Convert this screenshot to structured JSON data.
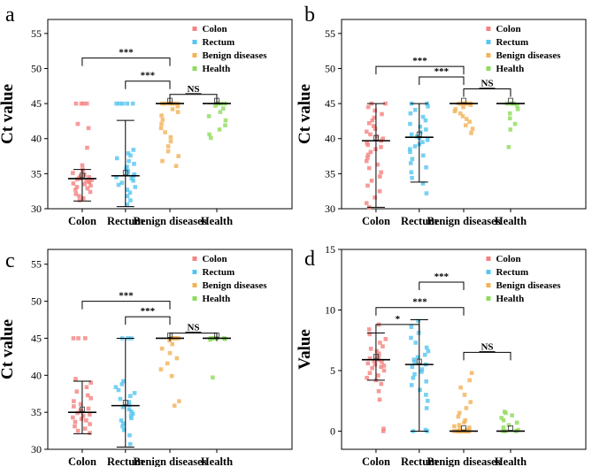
{
  "colors": {
    "colon": "#f4827f",
    "rectum": "#54c6f0",
    "benign": "#f2b255",
    "health": "#8edc5c",
    "axis": "#000000"
  },
  "chart_data": [
    {
      "panel": "a",
      "type": "scatter",
      "ylabel": "Ct value",
      "ylim": [
        30,
        57
      ],
      "yticks": [
        30,
        35,
        40,
        45,
        50,
        55
      ],
      "categories": [
        "Colon",
        "Rectum",
        "Benign diseases",
        "Health"
      ],
      "legend": [
        "Colon",
        "Rectum",
        "Benign diseases",
        "Health"
      ],
      "summary": [
        {
          "center": 34.3,
          "low": 31.1,
          "high": 35.6
        },
        {
          "center": 34.7,
          "low": 30.3,
          "high": 42.6
        },
        {
          "center": 45.0,
          "low": 45.0,
          "high": 45.0
        },
        {
          "center": 45.0,
          "low": 45.0,
          "high": 45.0
        }
      ],
      "series": [
        {
          "name": "Colon",
          "values": [
            45,
            45,
            45,
            45,
            42.1,
            41.5,
            38.7,
            36.2,
            35.6,
            35.4,
            35.1,
            34.9,
            34.8,
            34.6,
            34.5,
            34.4,
            34.3,
            34.2,
            34.1,
            34.0,
            33.9,
            33.8,
            33.6,
            33.5,
            33.3,
            33.1,
            32.9,
            32.7,
            32.4,
            32.1,
            31.8,
            31.5,
            31.2
          ]
        },
        {
          "name": "Rectum",
          "values": [
            45,
            45,
            45,
            45,
            45,
            38.4,
            37.9,
            37.6,
            37.2,
            36.8,
            36.4,
            36.0,
            35.7,
            35.4,
            35.1,
            34.9,
            34.7,
            34.5,
            34.3,
            34.0,
            33.7,
            33.4,
            33.1,
            32.7,
            32.3,
            31.8,
            31.2,
            30.6
          ]
        },
        {
          "name": "Benign diseases",
          "values": [
            45,
            45,
            45,
            45,
            45,
            45,
            44.6,
            44.2,
            43.8,
            43.3,
            42.7,
            42.1,
            41.5,
            40.9,
            40.2,
            39.6,
            38.9,
            38.2,
            37.5,
            36.8,
            36.1
          ]
        },
        {
          "name": "Health",
          "values": [
            45,
            45,
            45,
            45,
            44.7,
            44.3,
            43.8,
            43.2,
            42.6,
            41.9,
            41.3,
            40.6,
            40.1
          ]
        }
      ],
      "brackets": [
        {
          "from": 0,
          "to": 2,
          "y": 51.5,
          "label": "***"
        },
        {
          "from": 1,
          "to": 2,
          "y": 48.2,
          "label": "***"
        },
        {
          "from": 2,
          "to": 3,
          "y": 46.3,
          "label": "NS"
        }
      ]
    },
    {
      "panel": "b",
      "type": "scatter",
      "ylabel": "Ct value",
      "ylim": [
        30,
        57
      ],
      "yticks": [
        30,
        35,
        40,
        45,
        50,
        55
      ],
      "categories": [
        "Colon",
        "Rectum",
        "Benign diseases",
        "Health"
      ],
      "legend": [
        "Colon",
        "Rectum",
        "Benign diseases",
        "Health"
      ],
      "summary": [
        {
          "center": 39.7,
          "low": 30.2,
          "high": 45.0
        },
        {
          "center": 40.2,
          "low": 33.8,
          "high": 45.0
        },
        {
          "center": 45.0,
          "low": 45.0,
          "high": 45.0
        },
        {
          "center": 45.0,
          "low": 45.0,
          "high": 45.0
        }
      ],
      "series": [
        {
          "name": "Colon",
          "values": [
            45,
            45,
            44.5,
            44.0,
            43.5,
            43.0,
            42.6,
            42.2,
            41.8,
            41.4,
            41.0,
            40.6,
            40.3,
            40.0,
            39.7,
            39.4,
            39.1,
            38.8,
            38.5,
            38.1,
            37.7,
            37.3,
            36.8,
            36.3,
            35.8,
            35.2,
            34.6,
            34.0,
            33.3,
            32.5,
            31.6,
            30.8,
            30.2
          ]
        },
        {
          "name": "Rectum",
          "values": [
            45,
            45,
            44.6,
            44.1,
            43.6,
            43.1,
            42.6,
            42.1,
            41.7,
            41.3,
            40.9,
            40.6,
            40.3,
            40.1,
            39.8,
            39.5,
            39.2,
            38.9,
            38.5,
            38.1,
            37.6,
            37.1,
            36.5,
            35.9,
            35.2,
            34.4,
            33.6,
            32.2
          ]
        },
        {
          "name": "Benign diseases",
          "values": [
            45,
            45,
            45,
            45,
            45,
            45,
            44.8,
            44.5,
            44.2,
            43.9,
            43.6,
            43.2,
            42.8,
            42.4,
            41.9,
            41.4,
            40.8
          ]
        },
        {
          "name": "Health",
          "values": [
            45,
            45,
            45,
            45,
            44.7,
            44.2,
            43.6,
            42.9,
            42.1,
            41.3,
            38.8
          ]
        }
      ],
      "brackets": [
        {
          "from": 0,
          "to": 2,
          "y": 50.3,
          "label": "***"
        },
        {
          "from": 1,
          "to": 2,
          "y": 48.8,
          "label": "***"
        },
        {
          "from": 2,
          "to": 3,
          "y": 47.1,
          "label": "NS"
        }
      ]
    },
    {
      "panel": "c",
      "type": "scatter",
      "ylabel": "Ct value",
      "ylim": [
        30,
        57
      ],
      "yticks": [
        30,
        35,
        40,
        45,
        50,
        55
      ],
      "categories": [
        "Colon",
        "Rectum",
        "Benign diseases",
        "Health"
      ],
      "legend": [
        "Colon",
        "Rectum",
        "Benign diseases",
        "Health"
      ],
      "summary": [
        {
          "center": 35.0,
          "low": 32.1,
          "high": 39.2
        },
        {
          "center": 35.9,
          "low": 30.3,
          "high": 45.0
        },
        {
          "center": 45.0,
          "low": 45.0,
          "high": 45.0
        },
        {
          "center": 45.0,
          "low": 45.0,
          "high": 45.0
        }
      ],
      "series": [
        {
          "name": "Colon",
          "values": [
            45,
            45,
            45,
            39.5,
            39.0,
            38.4,
            37.8,
            37.3,
            36.9,
            36.5,
            36.1,
            35.8,
            35.5,
            35.3,
            35.1,
            34.9,
            34.7,
            34.5,
            34.3,
            34.1,
            33.9,
            33.7,
            33.4,
            33.1,
            32.8,
            32.5,
            32.2
          ]
        },
        {
          "name": "Rectum",
          "values": [
            45,
            45,
            45,
            39.2,
            38.8,
            38.4,
            38.0,
            37.6,
            37.2,
            36.8,
            36.4,
            36.0,
            35.7,
            35.4,
            35.1,
            34.8,
            34.5,
            34.2,
            33.9,
            33.5,
            33.1,
            32.6,
            31.9,
            30.7
          ]
        },
        {
          "name": "Benign diseases",
          "values": [
            45,
            45,
            45,
            45,
            45,
            44.7,
            44.2,
            43.6,
            43.0,
            42.3,
            41.6,
            40.8,
            39.9,
            36.5,
            35.9
          ]
        },
        {
          "name": "Health",
          "values": [
            45,
            45,
            45,
            45,
            45,
            44.9,
            44.8,
            39.7
          ]
        }
      ],
      "brackets": [
        {
          "from": 0,
          "to": 2,
          "y": 50.0,
          "label": "***"
        },
        {
          "from": 1,
          "to": 2,
          "y": 47.9,
          "label": "***"
        },
        {
          "from": 2,
          "to": 3,
          "y": 45.7,
          "label": "NS"
        }
      ]
    },
    {
      "panel": "d",
      "type": "scatter",
      "ylabel": "Value",
      "ylim": [
        -1.5,
        15
      ],
      "yticks": [
        0,
        5,
        10,
        15
      ],
      "categories": [
        "Colon",
        "Rectum",
        "Benign diseases",
        "Health"
      ],
      "legend": [
        "Colon",
        "Rectum",
        "Benign diseases",
        "Health"
      ],
      "summary": [
        {
          "center": 5.9,
          "low": 4.2,
          "high": 8.1
        },
        {
          "center": 5.5,
          "low": 0.0,
          "high": 9.2
        },
        {
          "center": 0.0,
          "low": 0.0,
          "high": 0.0
        },
        {
          "center": 0.0,
          "low": 0.0,
          "high": 0.0
        }
      ],
      "series": [
        {
          "name": "Colon",
          "values": [
            8.8,
            8.4,
            8.0,
            7.6,
            7.3,
            7.0,
            6.8,
            6.6,
            6.4,
            6.2,
            6.1,
            6.0,
            5.9,
            5.8,
            5.7,
            5.6,
            5.5,
            5.4,
            5.3,
            5.2,
            5.0,
            4.8,
            4.6,
            4.4,
            4.2,
            3.9,
            3.3,
            2.6,
            0.2,
            0.0
          ]
        },
        {
          "name": "Rectum",
          "values": [
            9.1,
            8.6,
            8.1,
            7.7,
            7.3,
            6.9,
            6.6,
            6.3,
            6.1,
            5.9,
            5.7,
            5.5,
            5.3,
            5.1,
            4.9,
            4.7,
            4.4,
            4.1,
            3.8,
            3.4,
            3.0,
            2.5,
            1.9,
            0.1,
            0.0,
            0.0
          ]
        },
        {
          "name": "Benign diseases",
          "values": [
            4.8,
            4.2,
            3.6,
            3.0,
            2.4,
            1.9,
            1.5,
            1.2,
            0.9,
            0.7,
            0.5,
            0.4,
            0.3,
            0.2,
            0.1,
            0.0,
            0.0,
            0.0,
            0.0,
            0.0,
            0.0,
            0.0,
            0.0,
            0.0,
            0.0,
            0.0,
            0.0,
            0.0
          ]
        },
        {
          "name": "Health",
          "values": [
            1.6,
            1.5,
            1.3,
            1.1,
            0.9,
            0.7,
            0.5,
            0.3,
            0.1,
            0.0,
            0.0,
            0.0
          ]
        }
      ],
      "brackets": [
        {
          "from": 1,
          "to": 2,
          "y": 12.3,
          "label": "***"
        },
        {
          "from": 0,
          "to": 2,
          "y": 10.2,
          "label": "***"
        },
        {
          "from": 0,
          "to": 1,
          "y": 8.8,
          "label": "*"
        },
        {
          "from": 2,
          "to": 3,
          "y": 6.5,
          "label": "NS"
        }
      ]
    }
  ]
}
